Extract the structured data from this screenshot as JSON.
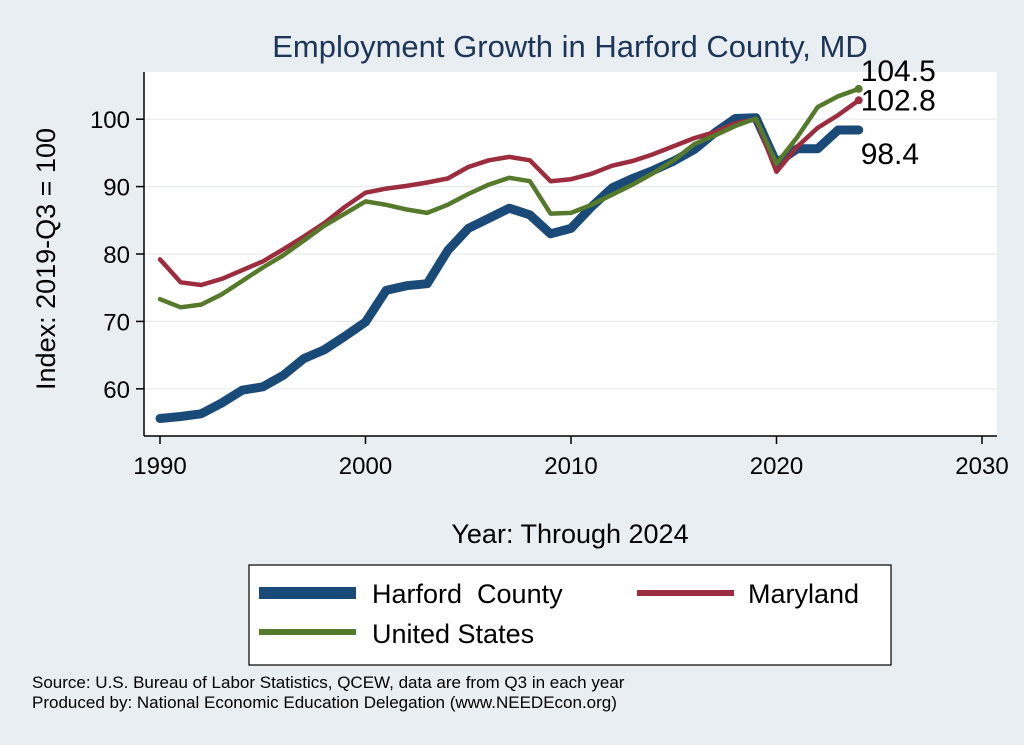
{
  "chart_data": {
    "type": "line",
    "title": "Employment Growth in Harford County, MD",
    "xlabel": "Year: Through 2024",
    "ylabel": "Index: 2019-Q3 = 100",
    "xlim": [
      1990,
      2030
    ],
    "ylim": [
      53,
      107
    ],
    "xticks": [
      1990,
      2000,
      2010,
      2020,
      2030
    ],
    "yticks": [
      60,
      70,
      80,
      90,
      100
    ],
    "grid": true,
    "legend_position": "bottom",
    "series": [
      {
        "name": "Harford  County",
        "color": "#1a4a78",
        "x": [
          1990,
          1991,
          1992,
          1993,
          1994,
          1995,
          1996,
          1997,
          1998,
          1999,
          2000,
          2001,
          2002,
          2003,
          2004,
          2005,
          2006,
          2007,
          2008,
          2009,
          2010,
          2011,
          2012,
          2013,
          2014,
          2015,
          2016,
          2017,
          2018,
          2019,
          2020,
          2021,
          2022,
          2023,
          2024
        ],
        "values": [
          55.6,
          55.9,
          56.3,
          57.9,
          59.8,
          60.3,
          62.0,
          64.5,
          65.8,
          67.8,
          69.9,
          74.6,
          75.3,
          75.6,
          80.5,
          83.8,
          85.3,
          86.8,
          85.8,
          83.0,
          83.8,
          87.0,
          89.8,
          91.2,
          92.4,
          93.8,
          95.5,
          98.0,
          100.1,
          100.2,
          93.5,
          95.6,
          95.6,
          98.4,
          98.4
        ],
        "end_label": "98.4"
      },
      {
        "name": "Maryland",
        "color": "#9b2d3e",
        "x": [
          1990,
          1991,
          1992,
          1993,
          1994,
          1995,
          1996,
          1997,
          1998,
          1999,
          2000,
          2001,
          2002,
          2003,
          2004,
          2005,
          2006,
          2007,
          2008,
          2009,
          2010,
          2011,
          2012,
          2013,
          2014,
          2015,
          2016,
          2017,
          2018,
          2019,
          2020,
          2021,
          2022,
          2023,
          2024
        ],
        "values": [
          79.2,
          75.8,
          75.4,
          76.3,
          77.6,
          78.9,
          80.7,
          82.6,
          84.6,
          87.0,
          89.1,
          89.7,
          90.1,
          90.6,
          91.2,
          92.9,
          93.9,
          94.4,
          93.9,
          90.8,
          91.1,
          91.9,
          93.1,
          93.8,
          94.8,
          96.0,
          97.2,
          98.1,
          99.4,
          100.0,
          92.2,
          95.9,
          98.7,
          100.6,
          102.8
        ],
        "end_label": "102.8"
      },
      {
        "name": "United States",
        "color": "#557a2c",
        "x": [
          1990,
          1991,
          1992,
          1993,
          1994,
          1995,
          1996,
          1997,
          1998,
          1999,
          2000,
          2001,
          2002,
          2003,
          2004,
          2005,
          2006,
          2007,
          2008,
          2009,
          2010,
          2011,
          2012,
          2013,
          2014,
          2015,
          2016,
          2017,
          2018,
          2019,
          2020,
          2021,
          2022,
          2023,
          2024
        ],
        "values": [
          73.3,
          72.1,
          72.5,
          74.0,
          76.0,
          78.0,
          79.8,
          82.0,
          84.2,
          86.0,
          87.8,
          87.3,
          86.6,
          86.1,
          87.3,
          88.9,
          90.3,
          91.3,
          90.8,
          86.0,
          86.1,
          87.3,
          88.8,
          90.3,
          92.0,
          93.9,
          96.3,
          97.6,
          99.0,
          100.1,
          93.4,
          97.3,
          101.8,
          103.4,
          104.5
        ],
        "end_label": "104.5"
      }
    ],
    "legend": [
      {
        "label": "Harford  County",
        "color": "#1a4a78"
      },
      {
        "label": "Maryland",
        "color": "#9b2d3e"
      },
      {
        "label": "United States",
        "color": "#557a2c"
      }
    ]
  },
  "footnotes": {
    "source": "Source: U.S. Bureau of Labor Statistics, QCEW, data are from Q3 in each year",
    "produced_by": "Produced by: National Economic Education Delegation (www.NEEDEcon.org)"
  }
}
